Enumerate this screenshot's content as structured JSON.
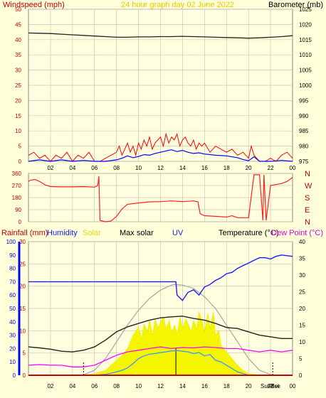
{
  "colors": {
    "background": "#ffffd9",
    "plot_bg": "#ffffe0",
    "grid": "#c8c8b4",
    "wind": "#ff0000",
    "gust_avg": "#0000ff",
    "baro": "#222222",
    "direction": "#ff2020",
    "rain": "#aa0000",
    "humidity": "#1a1aff",
    "solar": "#f5f500",
    "max_solar": "#aaaaaa",
    "uv": "#3399ff",
    "temperature": "#222222",
    "dew_point": "#ff00ff",
    "title": "#ffdd00"
  },
  "chart_data": [
    {
      "type": "line",
      "title": "24 hour graph day   02 June 2022",
      "ylabel_left": "Windspeed (mph)",
      "ylabel_right": "Barometer (mb)",
      "xticks": [
        "02",
        "04",
        "06",
        "08",
        "10",
        "12",
        "14",
        "16",
        "18",
        "20",
        "22",
        "00"
      ],
      "ylim_left": [
        0,
        50
      ],
      "yticks_left": [
        "0",
        "5",
        "10",
        "15",
        "20",
        "25",
        "30",
        "35",
        "40",
        "45",
        "50"
      ],
      "ylim_right": [
        975,
        1025
      ],
      "yticks_right": [
        "975",
        "980",
        "985",
        "990",
        "995",
        "1000",
        "1005",
        "1010",
        "1015",
        "1020",
        "1025"
      ],
      "series": [
        {
          "key": "gust",
          "x": [
            0,
            0.5,
            1,
            1.5,
            2,
            2.5,
            3,
            3.5,
            4,
            4.5,
            5,
            5.5,
            6,
            6.5,
            7,
            7.5,
            8,
            8.25,
            8.5,
            8.75,
            9,
            9.25,
            9.5,
            9.75,
            10,
            10.25,
            10.5,
            10.75,
            11,
            11.25,
            11.5,
            11.75,
            12,
            12.25,
            12.5,
            12.75,
            13,
            13.25,
            13.5,
            13.75,
            14,
            14.25,
            14.5,
            14.75,
            15,
            15.25,
            15.5,
            15.75,
            16,
            16.5,
            17,
            17.5,
            18,
            18.5,
            19,
            19.5,
            20,
            20.25,
            20.5,
            21,
            21.5,
            22,
            22.5,
            23,
            23.5,
            24
          ],
          "values": [
            2,
            3,
            1,
            2,
            0,
            2,
            1,
            3,
            0,
            2,
            1,
            3,
            0,
            0,
            1,
            2,
            3,
            5,
            2,
            4,
            6,
            3,
            5,
            2,
            6,
            4,
            7,
            5,
            8,
            4,
            6,
            7,
            8,
            5,
            9,
            6,
            8,
            7,
            9,
            5,
            7,
            8,
            6,
            5,
            7,
            4,
            6,
            5,
            6,
            3,
            5,
            4,
            3,
            4,
            2,
            3,
            1,
            5,
            2,
            0,
            0,
            1,
            0,
            2,
            3,
            1
          ]
        },
        {
          "key": "wind",
          "x": [
            0,
            1,
            2,
            3,
            4,
            5,
            6,
            7,
            8,
            8.5,
            9,
            9.5,
            10,
            10.5,
            11,
            11.5,
            12,
            12.5,
            13,
            13.5,
            14,
            14.5,
            15,
            15.5,
            16,
            17,
            18,
            19,
            19.5,
            20,
            20.5,
            21,
            22,
            23,
            24
          ],
          "values": [
            0,
            0.5,
            0,
            0.5,
            0,
            0.3,
            0,
            0,
            0.5,
            1,
            1.8,
            1.2,
            1.6,
            2.2,
            2,
            2.6,
            3,
            3.4,
            3.8,
            3.2,
            3.6,
            3,
            2.6,
            2.8,
            2.4,
            2,
            1.8,
            1.2,
            0.6,
            0.2,
            1.5,
            0,
            0,
            0.3,
            0
          ]
        },
        {
          "key": "barometer",
          "x": [
            0,
            1,
            2,
            3,
            4,
            5,
            6,
            7,
            8,
            9,
            10,
            11,
            12,
            13,
            14,
            15,
            16,
            17,
            18,
            19,
            20,
            21,
            22,
            23,
            24
          ],
          "values": [
            1017.2,
            1017.1,
            1017,
            1016.8,
            1016.6,
            1016.4,
            1016.2,
            1016,
            1015.8,
            1015.8,
            1015.9,
            1015.9,
            1016,
            1016,
            1016.1,
            1016,
            1015.9,
            1015.8,
            1015.7,
            1015.6,
            1015.5,
            1015.6,
            1015.8,
            1016,
            1016.3
          ]
        }
      ]
    },
    {
      "type": "line",
      "ylim": [
        0,
        360
      ],
      "yticks": [
        "0",
        "90",
        "180",
        "270",
        "360"
      ],
      "right_labels": [
        "N",
        "W",
        "S",
        "E",
        "N"
      ],
      "series": [
        {
          "key": "direction",
          "x": [
            0,
            0.2,
            0.6,
            1,
            1.5,
            2,
            3,
            4,
            5,
            6,
            6.3,
            6.4,
            6.5,
            7,
            7.5,
            8,
            8.5,
            9,
            10,
            11,
            12,
            13,
            14,
            15,
            15.4,
            15.6,
            16,
            17,
            18,
            18.5,
            19,
            20,
            20.5,
            21,
            21.3,
            21.4,
            21.6,
            22,
            23,
            23.5,
            24
          ],
          "values": [
            300,
            310,
            315,
            300,
            275,
            262,
            260,
            260,
            262,
            258,
            270,
            340,
            10,
            0,
            5,
            40,
            95,
            130,
            140,
            148,
            150,
            155,
            150,
            155,
            148,
            60,
            45,
            40,
            35,
            45,
            30,
            30,
            350,
            350,
            10,
            350,
            10,
            270,
            285,
            300,
            330
          ]
        }
      ]
    },
    {
      "type": "area",
      "labels": {
        "rainfall": "Rainfall (mm)",
        "humidity": "Humidity",
        "solar": "Solar",
        "max_solar": "Max solar",
        "uv": "UV",
        "temperature": "Temperature (°C)",
        "dew_point": "Dew Point (°C)"
      },
      "xticks": [
        "02",
        "04",
        "06",
        "08",
        "10",
        "12",
        "14",
        "16",
        "18",
        "20",
        "22",
        "00"
      ],
      "markers": [
        "SunSet",
        "Rise"
      ],
      "humidity_axis": {
        "ylim": [
          0,
          100
        ],
        "yticks": [
          "0",
          "10",
          "20",
          "30",
          "40",
          "50",
          "60",
          "70",
          "80",
          "90",
          "100"
        ]
      },
      "rain_axis": {
        "ylim": [
          0,
          30
        ],
        "yticks": [
          "0",
          "5",
          "10",
          "15",
          "20",
          "25",
          "30"
        ]
      },
      "temp_axis": {
        "ylim": [
          0,
          40
        ],
        "yticks": [
          "0",
          "5",
          "10",
          "15",
          "20",
          "25",
          "30",
          "35",
          "40"
        ]
      },
      "series": [
        {
          "key": "humidity",
          "unit": "%",
          "x": [
            0,
            13.4,
            13.5,
            14,
            14.5,
            15,
            15.5,
            16,
            16.5,
            17,
            17.5,
            18,
            18.5,
            19,
            19.5,
            20,
            20.5,
            21,
            21.5,
            22,
            22.5,
            23,
            24
          ],
          "values": [
            70,
            70,
            60,
            56,
            62,
            64,
            60,
            66,
            68,
            71,
            73,
            76,
            77,
            80,
            82,
            84,
            86,
            88,
            88,
            87,
            89,
            90,
            89
          ]
        },
        {
          "key": "temperature",
          "x": [
            0,
            1,
            2,
            3,
            4,
            5,
            6,
            7,
            8,
            9,
            10,
            11,
            12,
            13,
            14,
            15,
            16,
            17,
            18,
            19,
            20,
            21,
            22,
            23,
            24
          ],
          "values": [
            8.5,
            8.2,
            7.8,
            7.2,
            7,
            7.5,
            8.5,
            10.5,
            13,
            14.5,
            15.5,
            16.5,
            17.2,
            17.5,
            17.7,
            17,
            16.5,
            15.5,
            14.3,
            14,
            13,
            12,
            11.5,
            11,
            11
          ]
        },
        {
          "key": "dew_point",
          "x": [
            0,
            1,
            2,
            3,
            4,
            5,
            6,
            7,
            8,
            9,
            10,
            11,
            12,
            13,
            14,
            15,
            16,
            17,
            18,
            19,
            20,
            21,
            22,
            23,
            24
          ],
          "values": [
            3,
            3.2,
            3,
            3,
            2.5,
            2.5,
            3,
            4.5,
            6,
            7,
            7.5,
            8,
            8.5,
            8,
            8.3,
            8.2,
            8.5,
            8.3,
            8,
            8,
            7.5,
            7,
            7.5,
            7,
            7.5
          ]
        },
        {
          "key": "max_solar",
          "unit": "°C axis",
          "x": [
            4.9,
            6,
            7,
            8,
            9,
            10,
            11,
            12,
            13,
            13.3,
            14,
            15,
            16,
            17,
            18,
            19,
            20,
            21,
            22.2
          ],
          "values": [
            0,
            1.5,
            5,
            10,
            15,
            19.5,
            23,
            25.5,
            27,
            27.2,
            27,
            26,
            23.5,
            20,
            15,
            10,
            5,
            1.5,
            0
          ]
        },
        {
          "key": "solar",
          "x": [
            5,
            6,
            7,
            7.5,
            8,
            8.5,
            9,
            9.5,
            10,
            10.3,
            10.5,
            10.8,
            11,
            11.3,
            11.5,
            11.8,
            12,
            12.3,
            12.5,
            12.8,
            13,
            13.3,
            13.5,
            13.8,
            14,
            14.3,
            14.5,
            14.8,
            15,
            15.3,
            15.5,
            15.8,
            16,
            16.3,
            16.5,
            16.8,
            17,
            17.3,
            17.5,
            18,
            18.5,
            19,
            19.5,
            20,
            21,
            22
          ],
          "values": [
            0,
            0.5,
            1.5,
            3,
            4.5,
            6,
            8,
            12,
            14.5,
            11,
            15.5,
            13,
            16.5,
            12,
            17,
            14,
            16,
            17.5,
            14,
            16.5,
            13,
            15,
            12.5,
            17.5,
            14,
            17,
            15.5,
            13,
            16.5,
            14,
            19,
            16,
            13,
            18.5,
            14,
            19,
            12,
            13.5,
            9,
            7,
            5,
            3,
            1.5,
            0.5,
            0,
            0
          ]
        },
        {
          "key": "uv",
          "x": [
            6,
            7,
            7.5,
            8,
            8.5,
            9,
            9.5,
            10,
            10.5,
            11,
            11.5,
            12,
            12.5,
            13,
            13.5,
            14,
            14.5,
            15,
            15.5,
            16,
            16.5,
            17,
            17.5,
            18,
            18.5,
            19,
            20
          ],
          "values": [
            0,
            0.3,
            0.6,
            1,
            1.5,
            2.2,
            3.5,
            5,
            5.8,
            6.3,
            6.5,
            6.8,
            7,
            7.3,
            7.4,
            7.2,
            7,
            6.5,
            6.8,
            5.8,
            6.2,
            4.5,
            4,
            3,
            2,
            1,
            0
          ]
        }
      ]
    }
  ]
}
